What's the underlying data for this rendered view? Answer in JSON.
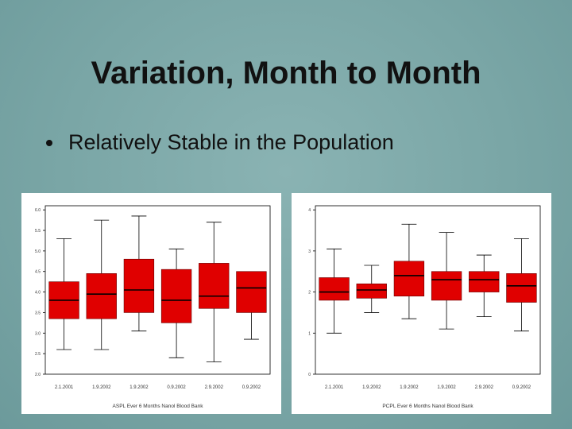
{
  "slide": {
    "title": "Variation, Month to Month",
    "bullet": "Relatively Stable in the Population"
  },
  "colors": {
    "box_fill": "#e00000",
    "median": "#000000",
    "whisker": "#000000"
  },
  "chart_data": [
    {
      "type": "box",
      "caption": "ASPL Ever 6 Months Nanol Blood Bank",
      "categories": [
        "2.1.2001",
        "1.9.2002",
        "1.9.2002",
        "0.9.2002",
        "2.9.2002",
        "0.9.2002"
      ],
      "yticks": [
        "2.0",
        "2.5",
        "3.0",
        "3.5",
        "4.0",
        "4.5",
        "5.0",
        "5.5",
        "6.0"
      ],
      "ylabel": "",
      "ylim": [
        2.0,
        6.1
      ],
      "boxes": [
        {
          "min": 2.6,
          "q1": 3.35,
          "median": 3.8,
          "q3": 4.25,
          "max": 5.3
        },
        {
          "min": 2.6,
          "q1": 3.35,
          "median": 3.95,
          "q3": 4.45,
          "max": 5.75
        },
        {
          "min": 3.05,
          "q1": 3.5,
          "median": 4.05,
          "q3": 4.8,
          "max": 5.85
        },
        {
          "min": 2.4,
          "q1": 3.25,
          "median": 3.8,
          "q3": 4.55,
          "max": 5.05
        },
        {
          "min": 2.3,
          "q1": 3.6,
          "median": 3.9,
          "q3": 4.7,
          "max": 5.7
        },
        {
          "min": 2.85,
          "q1": 3.5,
          "median": 4.1,
          "q3": 4.5,
          "max": null
        }
      ]
    },
    {
      "type": "box",
      "caption": "PCPL Ever 6 Months Nanol Blood Bank",
      "categories": [
        "2.1.2001",
        "1.9.2002",
        "1.9.2002",
        "1.9.2002",
        "2.9.2002",
        "0.9.2002"
      ],
      "yticks": [
        "0",
        "1",
        "2",
        "3",
        "4"
      ],
      "ylabel": "",
      "ylim": [
        0,
        4.1
      ],
      "boxes": [
        {
          "min": 1.0,
          "q1": 1.8,
          "median": 2.0,
          "q3": 2.35,
          "max": 3.05
        },
        {
          "min": 1.5,
          "q1": 1.85,
          "median": 2.05,
          "q3": 2.2,
          "max": 2.65
        },
        {
          "min": 1.35,
          "q1": 1.9,
          "median": 2.4,
          "q3": 2.75,
          "max": 3.65
        },
        {
          "min": 1.1,
          "q1": 1.8,
          "median": 2.3,
          "q3": 2.5,
          "max": 3.45
        },
        {
          "min": 1.4,
          "q1": 2.0,
          "median": 2.3,
          "q3": 2.5,
          "max": 2.9
        },
        {
          "min": 1.05,
          "q1": 1.75,
          "median": 2.15,
          "q3": 2.45,
          "max": 3.3
        }
      ]
    }
  ]
}
